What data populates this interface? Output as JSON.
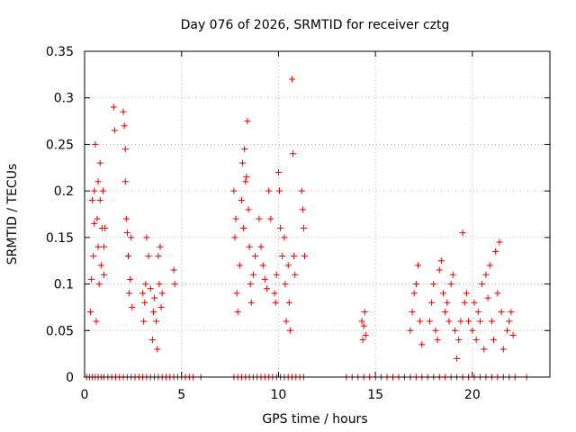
{
  "chart_data": {
    "type": "scatter",
    "title": "Day 076 of 2026, SRMTID for receiver cztg",
    "xlabel": "GPS time / hours",
    "ylabel": "SRMTID / TECUs",
    "xlim": [
      0,
      24
    ],
    "ylim": [
      0,
      0.35
    ],
    "x_ticks": [
      0,
      5,
      10,
      15,
      20
    ],
    "x_tick_labels": [
      "0",
      "5",
      "10",
      "15",
      "20"
    ],
    "y_ticks": [
      0,
      0.05,
      0.1,
      0.15,
      0.2,
      0.25,
      0.3,
      0.35
    ],
    "y_tick_labels": [
      "0",
      "0.05",
      "0.1",
      "0.15",
      "0.2",
      "0.25",
      "0.3",
      "0.35"
    ],
    "grid": true,
    "marker": "+",
    "color": "#dd0000",
    "series": [
      {
        "name": "SRMTID",
        "points": [
          [
            0.3,
            0.07
          ],
          [
            0.35,
            0.105
          ],
          [
            0.4,
            0.19
          ],
          [
            0.45,
            0.13
          ],
          [
            0.5,
            0.165
          ],
          [
            0.5,
            0.2
          ],
          [
            0.55,
            0.25
          ],
          [
            0.6,
            0.06
          ],
          [
            0.65,
            0.17
          ],
          [
            0.7,
            0.14
          ],
          [
            0.7,
            0.21
          ],
          [
            0.75,
            0.1
          ],
          [
            0.8,
            0.19
          ],
          [
            0.8,
            0.23
          ],
          [
            0.85,
            0.12
          ],
          [
            0.9,
            0.16
          ],
          [
            0.95,
            0.2
          ],
          [
            1.0,
            0.14
          ],
          [
            1.0,
            0.11
          ],
          [
            1.05,
            0.16
          ],
          [
            1.5,
            0.29
          ],
          [
            1.55,
            0.265
          ],
          [
            2.0,
            0.285
          ],
          [
            2.05,
            0.27
          ],
          [
            2.1,
            0.245
          ],
          [
            2.1,
            0.21
          ],
          [
            2.15,
            0.17
          ],
          [
            2.2,
            0.155
          ],
          [
            2.25,
            0.13
          ],
          [
            2.3,
            0.09
          ],
          [
            2.35,
            0.105
          ],
          [
            2.4,
            0.15
          ],
          [
            2.45,
            0.075
          ],
          [
            3.0,
            0.09
          ],
          [
            3.05,
            0.06
          ],
          [
            3.1,
            0.08
          ],
          [
            3.15,
            0.1
          ],
          [
            3.2,
            0.15
          ],
          [
            3.3,
            0.13
          ],
          [
            3.4,
            0.095
          ],
          [
            3.5,
            0.04
          ],
          [
            3.55,
            0.07
          ],
          [
            3.6,
            0.085
          ],
          [
            3.7,
            0.06
          ],
          [
            3.75,
            0.03
          ],
          [
            3.8,
            0.13
          ],
          [
            3.85,
            0.1
          ],
          [
            3.9,
            0.14
          ],
          [
            3.95,
            0.075
          ],
          [
            4.0,
            0.09
          ],
          [
            4.6,
            0.115
          ],
          [
            4.65,
            0.1
          ],
          [
            7.7,
            0.2
          ],
          [
            7.75,
            0.15
          ],
          [
            7.8,
            0.17
          ],
          [
            7.85,
            0.09
          ],
          [
            7.9,
            0.07
          ],
          [
            8.0,
            0.12
          ],
          [
            8.1,
            0.19
          ],
          [
            8.15,
            0.23
          ],
          [
            8.2,
            0.16
          ],
          [
            8.25,
            0.245
          ],
          [
            8.3,
            0.21
          ],
          [
            8.35,
            0.215
          ],
          [
            8.4,
            0.275
          ],
          [
            8.45,
            0.18
          ],
          [
            8.5,
            0.14
          ],
          [
            8.55,
            0.1
          ],
          [
            8.6,
            0.08
          ],
          [
            8.7,
            0.11
          ],
          [
            8.8,
            0.13
          ],
          [
            9.0,
            0.17
          ],
          [
            9.1,
            0.14
          ],
          [
            9.2,
            0.12
          ],
          [
            9.3,
            0.105
          ],
          [
            9.4,
            0.095
          ],
          [
            9.5,
            0.2
          ],
          [
            9.6,
            0.17
          ],
          [
            9.8,
            0.09
          ],
          [
            9.85,
            0.08
          ],
          [
            9.9,
            0.11
          ],
          [
            10.0,
            0.22
          ],
          [
            10.05,
            0.2
          ],
          [
            10.1,
            0.16
          ],
          [
            10.2,
            0.13
          ],
          [
            10.3,
            0.15
          ],
          [
            10.35,
            0.1
          ],
          [
            10.4,
            0.06
          ],
          [
            10.5,
            0.12
          ],
          [
            10.55,
            0.08
          ],
          [
            10.6,
            0.05
          ],
          [
            10.7,
            0.32
          ],
          [
            10.75,
            0.24
          ],
          [
            10.8,
            0.13
          ],
          [
            10.85,
            0.11
          ],
          [
            11.2,
            0.2
          ],
          [
            11.25,
            0.18
          ],
          [
            11.3,
            0.16
          ],
          [
            11.35,
            0.13
          ],
          [
            14.3,
            0.06
          ],
          [
            14.35,
            0.04
          ],
          [
            14.4,
            0.055
          ],
          [
            14.45,
            0.07
          ],
          [
            14.5,
            0.045
          ],
          [
            16.8,
            0.05
          ],
          [
            16.9,
            0.07
          ],
          [
            17.0,
            0.09
          ],
          [
            17.1,
            0.1
          ],
          [
            17.2,
            0.12
          ],
          [
            17.3,
            0.06
          ],
          [
            17.4,
            0.035
          ],
          [
            17.8,
            0.06
          ],
          [
            17.9,
            0.08
          ],
          [
            18.0,
            0.1
          ],
          [
            18.1,
            0.05
          ],
          [
            18.2,
            0.04
          ],
          [
            18.3,
            0.115
          ],
          [
            18.4,
            0.125
          ],
          [
            18.5,
            0.09
          ],
          [
            18.6,
            0.07
          ],
          [
            18.7,
            0.08
          ],
          [
            18.8,
            0.06
          ],
          [
            18.9,
            0.1
          ],
          [
            19.0,
            0.11
          ],
          [
            19.1,
            0.05
          ],
          [
            19.2,
            0.02
          ],
          [
            19.3,
            0.04
          ],
          [
            19.4,
            0.06
          ],
          [
            19.5,
            0.155
          ],
          [
            19.6,
            0.08
          ],
          [
            19.7,
            0.09
          ],
          [
            19.8,
            0.06
          ],
          [
            20.0,
            0.05
          ],
          [
            20.1,
            0.08
          ],
          [
            20.2,
            0.04
          ],
          [
            20.3,
            0.07
          ],
          [
            20.4,
            0.06
          ],
          [
            20.5,
            0.1
          ],
          [
            20.6,
            0.03
          ],
          [
            20.7,
            0.11
          ],
          [
            20.8,
            0.085
          ],
          [
            20.9,
            0.12
          ],
          [
            21.0,
            0.06
          ],
          [
            21.1,
            0.04
          ],
          [
            21.2,
            0.135
          ],
          [
            21.3,
            0.09
          ],
          [
            21.4,
            0.145
          ],
          [
            21.5,
            0.07
          ],
          [
            21.6,
            0.03
          ],
          [
            21.8,
            0.05
          ],
          [
            21.9,
            0.06
          ],
          [
            22.0,
            0.07
          ],
          [
            22.1,
            0.045
          ]
        ],
        "zero_points": [
          0.1,
          0.25,
          0.4,
          0.55,
          0.7,
          0.85,
          1.0,
          1.2,
          1.4,
          1.6,
          1.8,
          2.0,
          2.2,
          2.4,
          2.6,
          2.8,
          3.0,
          3.2,
          3.4,
          3.6,
          3.8,
          4.0,
          4.2,
          4.4,
          4.6,
          4.8,
          5.0,
          5.2,
          5.4,
          5.6,
          6.0,
          7.7,
          7.9,
          8.1,
          8.3,
          8.5,
          8.7,
          8.9,
          9.1,
          9.3,
          9.5,
          9.7,
          9.9,
          10.1,
          10.3,
          10.5,
          10.7,
          10.9,
          11.1,
          11.3,
          13.5,
          13.8,
          14.1,
          14.4,
          14.7,
          15.0,
          15.3,
          15.6,
          15.9,
          16.2,
          16.5,
          16.8,
          17.1,
          17.4,
          17.7,
          18.0,
          18.3,
          18.6,
          18.9,
          19.2,
          19.5,
          19.8,
          20.1,
          20.4,
          20.7,
          21.0,
          21.3,
          21.6,
          21.9,
          22.2,
          22.8
        ]
      }
    ]
  }
}
